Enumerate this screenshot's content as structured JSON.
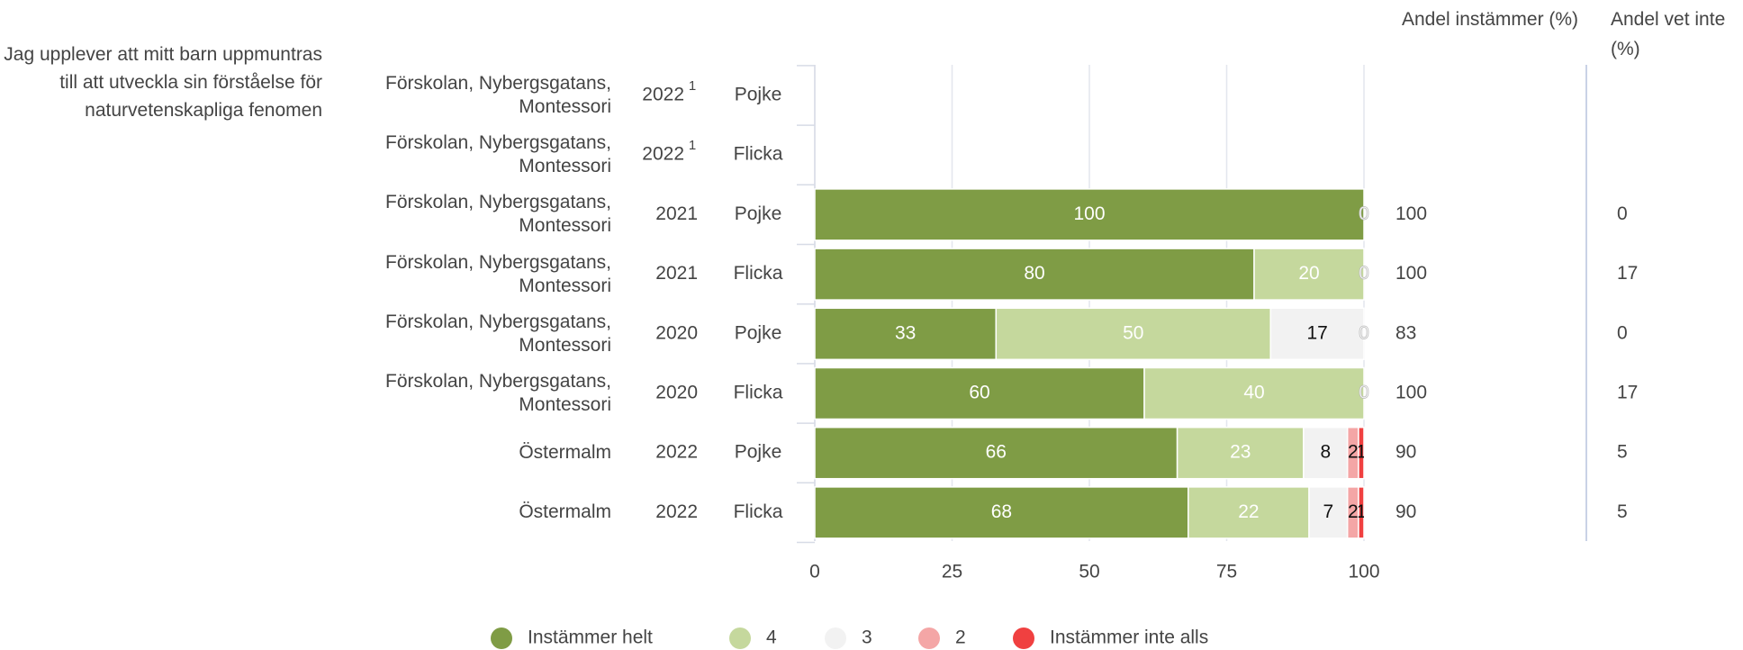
{
  "chart_data": {
    "type": "bar",
    "orientation": "horizontal",
    "stacked": true,
    "question": "Jag upplever att mitt barn uppmuntras till att utveckla sin förståelse för naturvetenskapliga fenomen",
    "column_headers": {
      "agree": "Andel instämmer (%)",
      "dont_know": "Andel vet inte (%)"
    },
    "rows": [
      {
        "school": "Förskolan, Nybergsgatans, Montessori",
        "year": "2022",
        "year_note": "1",
        "gender": "Pojke",
        "agree": null,
        "dont_know": null
      },
      {
        "school": "Förskolan, Nybergsgatans, Montessori",
        "year": "2022",
        "year_note": "1",
        "gender": "Flicka",
        "agree": null,
        "dont_know": null
      },
      {
        "school": "Förskolan, Nybergsgatans, Montessori",
        "year": "2021",
        "gender": "Pojke",
        "agree": 100,
        "dont_know": 0
      },
      {
        "school": "Förskolan, Nybergsgatans, Montessori",
        "year": "2021",
        "gender": "Flicka",
        "agree": 100,
        "dont_know": 17
      },
      {
        "school": "Förskolan, Nybergsgatans, Montessori",
        "year": "2020",
        "gender": "Pojke",
        "agree": 83,
        "dont_know": 0
      },
      {
        "school": "Förskolan, Nybergsgatans, Montessori",
        "year": "2020",
        "gender": "Flicka",
        "agree": 100,
        "dont_know": 17
      },
      {
        "school": "Östermalm",
        "year": "2022",
        "gender": "Pojke",
        "agree": 90,
        "dont_know": 5
      },
      {
        "school": "Östermalm",
        "year": "2022",
        "gender": "Flicka",
        "agree": 90,
        "dont_know": 5
      }
    ],
    "series": [
      {
        "name": "Instämmer helt",
        "color": "#7f9c45",
        "label_color": "#ffffff",
        "values": [
          null,
          null,
          100,
          80,
          33,
          60,
          66,
          68
        ]
      },
      {
        "name": "4",
        "color": "#c5d89d",
        "label_color": "#ffffff",
        "values": [
          null,
          null,
          null,
          20,
          50,
          40,
          23,
          22
        ]
      },
      {
        "name": "3",
        "color": "#f2f2f2",
        "label_color": "#111111",
        "values": [
          null,
          null,
          null,
          null,
          17,
          null,
          8,
          7
        ]
      },
      {
        "name": "2",
        "color": "#f4a6a6",
        "label_color": "#111111",
        "values": [
          null,
          null,
          null,
          null,
          0,
          null,
          2,
          2
        ]
      },
      {
        "name": "Instämmer inte alls",
        "color": "#f04040",
        "label_color": "#111111",
        "values": [
          null,
          null,
          0,
          0,
          null,
          0,
          1,
          1
        ]
      }
    ],
    "xlim": [
      0,
      100
    ],
    "xticks": [
      0,
      25,
      50,
      75,
      100
    ],
    "grid": true,
    "legend": "bottom"
  }
}
